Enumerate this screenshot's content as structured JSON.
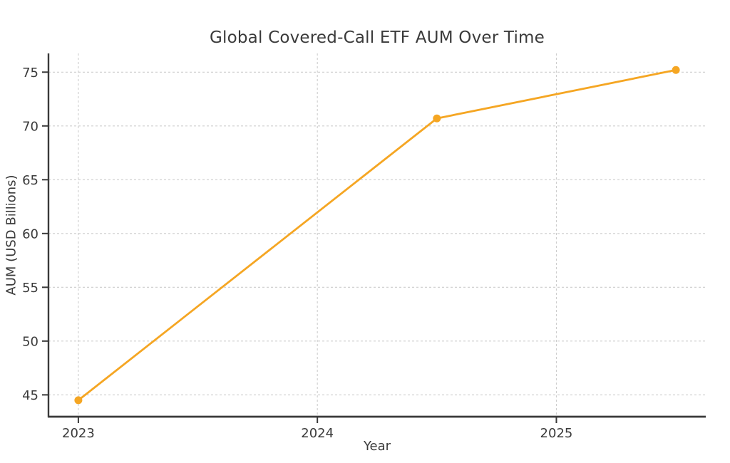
{
  "chart_data": {
    "type": "line",
    "title": "Global Covered-Call ETF AUM Over Time",
    "xlabel": "Year",
    "ylabel": "AUM (USD Billions)",
    "x": [
      2023,
      2024.5,
      2025.5
    ],
    "values": [
      44.5,
      70.7,
      75.2
    ],
    "xlim": [
      2022.875,
      2025.625
    ],
    "ylim": [
      42.97,
      76.74
    ],
    "xticks": {
      "values": [
        2023,
        2024,
        2025
      ],
      "labels": [
        "2023",
        "2024",
        "2025"
      ]
    },
    "yticks": {
      "values": [
        45,
        50,
        55,
        60,
        65,
        70,
        75
      ],
      "labels": [
        "45",
        "50",
        "55",
        "60",
        "65",
        "70",
        "75"
      ]
    },
    "grid": {
      "show": true,
      "style": "dashed",
      "color": "#cdcdcd"
    },
    "legend": "none",
    "line": {
      "color": "#F5A623",
      "width": 2.8,
      "marker": "circle",
      "marker_radius": 5.5
    },
    "spine_color": "#3a3a3a",
    "tick_color": "#3a3a3a",
    "text_color": "#3a3a3a",
    "background_color": "#ffffff"
  }
}
